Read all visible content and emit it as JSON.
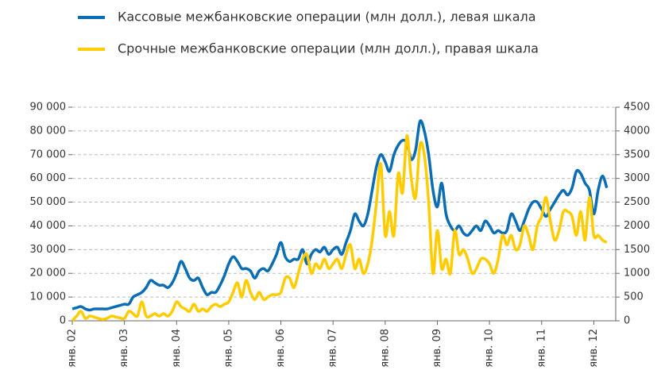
{
  "chart_data": {
    "type": "line",
    "legend": "top",
    "grid": true,
    "categories": [
      "янв. 02",
      null,
      null,
      null,
      null,
      null,
      null,
      null,
      null,
      null,
      null,
      null,
      "янв. 03",
      null,
      null,
      null,
      null,
      null,
      null,
      null,
      null,
      null,
      null,
      null,
      "янв. 04",
      null,
      null,
      null,
      null,
      null,
      null,
      null,
      null,
      null,
      null,
      null,
      "янв. 05",
      null,
      null,
      null,
      null,
      null,
      null,
      null,
      null,
      null,
      null,
      null,
      "янв. 06",
      null,
      null,
      null,
      null,
      null,
      null,
      null,
      null,
      null,
      null,
      null,
      "янв. 07",
      null,
      null,
      null,
      null,
      null,
      null,
      null,
      null,
      null,
      null,
      null,
      "янв. 08",
      null,
      null,
      null,
      null,
      null,
      null,
      null,
      null,
      null,
      null,
      null,
      "янв. 09",
      null,
      null,
      null,
      null,
      null,
      null,
      null,
      null,
      null,
      null,
      null,
      "янв. 10",
      null,
      null,
      null,
      null,
      null,
      null,
      null,
      null,
      null,
      null,
      null,
      "янв. 11",
      null,
      null,
      null,
      null,
      null,
      null,
      null,
      null,
      null,
      null,
      null,
      "янв. 12",
      null,
      null,
      null
    ],
    "ylim": [
      0,
      90000
    ],
    "yticks": [
      {
        "value": 0,
        "label": "0"
      },
      {
        "value": 10000,
        "label": "10 000"
      },
      {
        "value": 20000,
        "label": "20 000"
      },
      {
        "value": 30000,
        "label": "30 000"
      },
      {
        "value": 40000,
        "label": "40 000"
      },
      {
        "value": 50000,
        "label": "50 000"
      },
      {
        "value": 60000,
        "label": "60 000"
      },
      {
        "value": 70000,
        "label": "70 000"
      },
      {
        "value": 80000,
        "label": "80 000"
      },
      {
        "value": 90000,
        "label": "90 000"
      }
    ],
    "y2lim": [
      0,
      4500
    ],
    "y2ticks": [
      0,
      500,
      1000,
      1500,
      2000,
      2500,
      3000,
      3500,
      4000,
      4500
    ],
    "series": [
      {
        "name": "Кассовые межбанковские операции (млн долл.), левая шкала",
        "color": "#0b6db3",
        "axis": "y",
        "values": [
          5000,
          5500,
          6000,
          5000,
          4500,
          5000,
          5000,
          5000,
          5000,
          5500,
          6000,
          6500,
          7000,
          7000,
          10000,
          11000,
          12000,
          14000,
          17000,
          16000,
          15000,
          15000,
          14000,
          16000,
          20000,
          25000,
          22000,
          18000,
          17000,
          18000,
          14000,
          11000,
          12000,
          12000,
          15000,
          19000,
          24000,
          27000,
          25000,
          22000,
          22000,
          21000,
          18000,
          21000,
          22000,
          21000,
          24000,
          28000,
          33000,
          27000,
          25000,
          26000,
          26000,
          30000,
          24000,
          28000,
          30000,
          29000,
          31000,
          28000,
          30000,
          31000,
          28000,
          33000,
          38000,
          45000,
          42000,
          40000,
          45000,
          55000,
          65000,
          70000,
          67000,
          63000,
          70000,
          74000,
          76000,
          75000,
          68000,
          72000,
          84000,
          80000,
          70000,
          55000,
          48000,
          58000,
          45000,
          40000,
          38000,
          40000,
          37000,
          36000,
          38000,
          40000,
          38000,
          42000,
          40000,
          37000,
          38000,
          37000,
          38000,
          45000,
          42000,
          38000,
          42000,
          47000,
          50000,
          50000,
          47000,
          44000,
          47000,
          50000,
          53000,
          55000,
          53000,
          56000,
          63000,
          62000,
          58000,
          55000,
          45000,
          55000,
          61000,
          56000
        ]
      },
      {
        "name": "Срочные межбанковские операции (млн долл.), правая шкала",
        "color": "#ffcc00",
        "axis": "y2",
        "values": [
          0,
          100,
          200,
          50,
          100,
          80,
          50,
          30,
          50,
          100,
          80,
          60,
          50,
          200,
          150,
          100,
          400,
          100,
          100,
          150,
          100,
          150,
          100,
          200,
          400,
          300,
          250,
          200,
          350,
          200,
          250,
          200,
          300,
          350,
          300,
          350,
          400,
          600,
          800,
          500,
          850,
          600,
          450,
          600,
          450,
          500,
          550,
          550,
          600,
          900,
          900,
          700,
          1000,
          1300,
          1400,
          1000,
          1200,
          1100,
          1300,
          1100,
          1200,
          1300,
          1100,
          1400,
          1600,
          1100,
          1300,
          1000,
          1200,
          1700,
          2500,
          3300,
          1800,
          2300,
          1800,
          3100,
          2700,
          3900,
          3000,
          2600,
          3700,
          3500,
          2500,
          1000,
          1900,
          1100,
          1300,
          1000,
          1900,
          1400,
          1500,
          1300,
          1000,
          1100,
          1300,
          1300,
          1200,
          1000,
          1300,
          1800,
          1600,
          1800,
          1500,
          1600,
          2000,
          1800,
          1500,
          2000,
          2200,
          2600,
          2100,
          1700,
          1900,
          2300,
          2300,
          2200,
          1800,
          2300,
          1700,
          2600,
          1800,
          1800,
          1700,
          1650
        ]
      }
    ]
  }
}
